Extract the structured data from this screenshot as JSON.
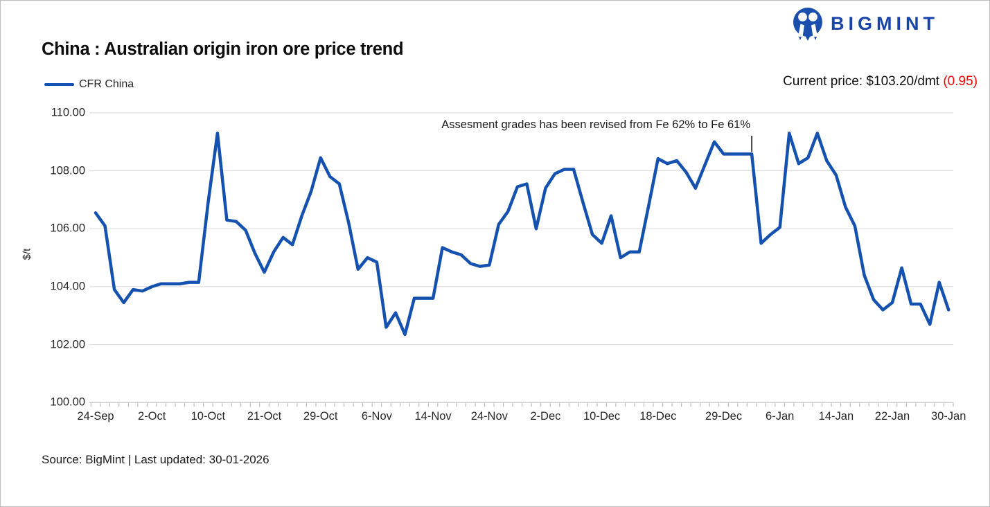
{
  "header": {
    "logo_text": "BIGMINT",
    "title": "China : Australian origin iron ore price trend",
    "current_price_label": "Current price: $103.20/dmt",
    "current_price_change": "(0.95)"
  },
  "legend": {
    "series_label": "CFR China"
  },
  "footer": {
    "source_text": "Source: BigMint | Last updated: 30-01-2026"
  },
  "colors": {
    "line": "#1552b0",
    "logo_blue": "#1843a8",
    "change_red": "#ff0000",
    "grid": "#d9d9d9",
    "axis": "#bfbfbf",
    "annotation_pointer": "#000000"
  },
  "chart_data": {
    "type": "line",
    "title": "China : Australian origin iron ore price trend",
    "xlabel": "",
    "ylabel": "$/t",
    "ylim": [
      100,
      110
    ],
    "ytick_values": [
      110,
      108,
      106,
      104,
      102,
      100
    ],
    "ytick_labels": [
      "110.00",
      "108.00",
      "106.00",
      "104.00",
      "102.00",
      "100.00"
    ],
    "grid": "horizontal",
    "legend_position": "top-left",
    "x_labels": [
      "24-Sep",
      "2-Oct",
      "10-Oct",
      "21-Oct",
      "29-Oct",
      "6-Nov",
      "14-Nov",
      "24-Nov",
      "2-Dec",
      "10-Dec",
      "18-Dec",
      "29-Dec",
      "6-Jan",
      "14-Jan",
      "22-Jan",
      "30-Jan"
    ],
    "x_label_indices": [
      0,
      6,
      12,
      18,
      24,
      30,
      36,
      42,
      48,
      54,
      60,
      67,
      73,
      79,
      85,
      91
    ],
    "annotation": {
      "text": "Assesment grades has been revised from Fe 62% to Fe 61%",
      "point_index": 70
    },
    "series": [
      {
        "name": "CFR China",
        "unit": "$/t",
        "current_price": 103.2,
        "day_change": -0.95,
        "values": [
          106.55,
          106.1,
          103.9,
          103.45,
          103.9,
          103.85,
          104.0,
          104.1,
          104.1,
          104.1,
          104.15,
          104.15,
          106.9,
          109.3,
          106.3,
          106.25,
          105.95,
          105.15,
          104.5,
          105.2,
          105.7,
          105.45,
          106.45,
          107.3,
          108.45,
          107.8,
          107.55,
          106.2,
          104.6,
          105.0,
          104.85,
          102.6,
          103.1,
          102.35,
          103.6,
          103.6,
          103.6,
          105.35,
          105.2,
          105.1,
          104.8,
          104.7,
          104.75,
          106.15,
          106.6,
          107.45,
          107.55,
          106.0,
          107.4,
          107.9,
          108.05,
          108.05,
          106.9,
          105.8,
          105.5,
          106.45,
          105.0,
          105.2,
          105.2,
          106.8,
          108.42,
          108.25,
          108.35,
          107.95,
          107.4,
          108.2,
          109.0,
          108.58,
          108.58,
          108.58,
          108.58,
          105.5,
          105.8,
          106.05,
          109.3,
          108.25,
          108.45,
          109.3,
          108.35,
          107.85,
          106.75,
          106.1,
          104.4,
          103.55,
          103.2,
          103.45,
          104.65,
          103.4,
          103.4,
          102.7,
          104.15,
          103.2
        ]
      }
    ]
  }
}
